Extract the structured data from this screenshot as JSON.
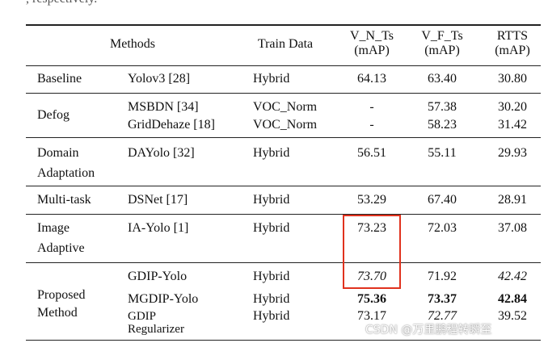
{
  "caption_fragment": ", respectively.",
  "table": {
    "header": [
      "Methods",
      "Train Data",
      [
        "V_N_Ts",
        "(mAP)"
      ],
      [
        "V_F_Ts",
        "(mAP)"
      ],
      [
        "RTTS",
        "(mAP)"
      ]
    ],
    "groups": [
      {
        "label": [
          "Baseline"
        ],
        "rows": [
          {
            "method": [
              "Yolov3 [28]"
            ],
            "train": "Hybrid",
            "v_n_ts": "64.13",
            "v_f_ts": "63.40",
            "rtts": "30.80"
          }
        ]
      },
      {
        "label": [
          "Defog"
        ],
        "rows": [
          {
            "method": [
              "MSBDN [34]"
            ],
            "train": "VOC_Norm",
            "v_n_ts": "-",
            "v_f_ts": "57.38",
            "rtts": "30.20"
          },
          {
            "method": [
              "GridDehaze [18]"
            ],
            "train": "VOC_Norm",
            "v_n_ts": "-",
            "v_f_ts": "58.23",
            "rtts": "31.42"
          }
        ]
      },
      {
        "label": [
          "Domain",
          "Adaptation"
        ],
        "rows": [
          {
            "method": [
              "DAYolo [32]"
            ],
            "train": "Hybrid",
            "v_n_ts": "56.51",
            "v_f_ts": "55.11",
            "rtts": "29.93"
          }
        ]
      },
      {
        "label": [
          "Multi-task"
        ],
        "rows": [
          {
            "method": [
              "DSNet [17]"
            ],
            "train": "Hybrid",
            "v_n_ts": "53.29",
            "v_f_ts": "67.40",
            "rtts": "28.91"
          }
        ]
      },
      {
        "label": [
          "Image",
          "Adaptive"
        ],
        "rows": [
          {
            "method": [
              "IA-Yolo [1]"
            ],
            "train": "Hybrid",
            "v_n_ts": "73.23",
            "v_f_ts": "72.03",
            "rtts": "37.08"
          }
        ]
      },
      {
        "label": [
          "Proposed",
          "Method"
        ],
        "rows": [
          {
            "method": [
              "GDIP-Yolo"
            ],
            "train": "Hybrid",
            "v_n_ts": "73.70",
            "v_f_ts": "71.92",
            "rtts": "42.42"
          },
          {
            "method": [
              "MGDIP-Yolo"
            ],
            "train": "Hybrid",
            "v_n_ts": "75.36",
            "v_f_ts": "73.37",
            "rtts": "42.84"
          },
          {
            "method": [
              "GDIP",
              "Regularizer"
            ],
            "train": "Hybrid",
            "v_n_ts": "73.17",
            "v_f_ts": "72.77",
            "rtts": "39.52"
          }
        ]
      }
    ]
  },
  "watermark": "CSDN @万里鹏程转瞬至"
}
